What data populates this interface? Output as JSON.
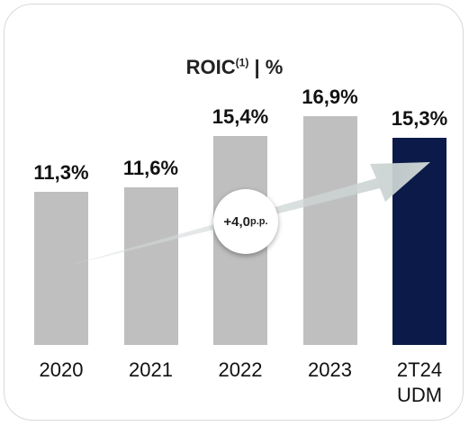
{
  "chart_data": {
    "type": "bar",
    "title": "ROIC",
    "title_superscript": "(1)",
    "title_suffix": "| %",
    "categories": [
      "2020",
      "2021",
      "2022",
      "2023",
      "2T24 UDM"
    ],
    "values": [
      11.3,
      11.6,
      15.4,
      16.9,
      15.3
    ],
    "value_labels": [
      "11,3%",
      "11,6%",
      "15,4%",
      "16,9%",
      "15,3%"
    ],
    "colors": [
      "#bfbfbf",
      "#bfbfbf",
      "#bfbfbf",
      "#bfbfbf",
      "#0b1a48"
    ],
    "annotation": {
      "text": "+4,0",
      "unit": "p.p."
    }
  }
}
